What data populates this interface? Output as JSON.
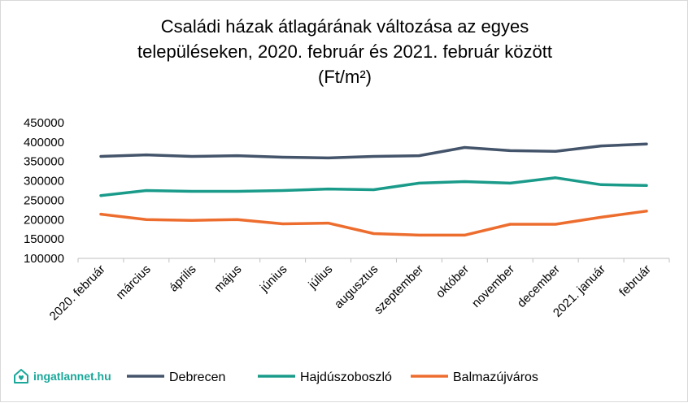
{
  "chart_data": {
    "type": "line",
    "title_lines": [
      "Családi házak átlagárának változása az egyes",
      "településeken, 2020. február és 2021. február között",
      "(Ft/m²)"
    ],
    "categories": [
      "2020. február",
      "március",
      "április",
      "május",
      "június",
      "július",
      "augusztus",
      "szeptember",
      "október",
      "november",
      "december",
      "2021. január",
      "február"
    ],
    "y_ticks": [
      "450000",
      "400000",
      "350000",
      "300000",
      "250000",
      "200000",
      "150000",
      "100000"
    ],
    "ylim": [
      100000,
      450000
    ],
    "grid": false,
    "legend_position": "bottom",
    "series": [
      {
        "name": "Debrecen",
        "color": "#44546a",
        "values": [
          363000,
          367000,
          363000,
          365000,
          361000,
          359000,
          363000,
          365000,
          386000,
          378000,
          376000,
          390000,
          395000
        ]
      },
      {
        "name": "Hajdúszoboszló",
        "color": "#1a9b8a",
        "values": [
          262000,
          275000,
          273000,
          273000,
          275000,
          279000,
          277000,
          294000,
          298000,
          294000,
          308000,
          290000,
          288000
        ]
      },
      {
        "name": "Balmazújváros",
        "color": "#ed6d2e",
        "values": [
          214000,
          200000,
          198000,
          200000,
          189000,
          191000,
          164000,
          160000,
          160000,
          188000,
          188000,
          206000,
          222000
        ]
      }
    ]
  },
  "logo": {
    "text": "ingatlannet.hu",
    "icon": "house-heart-icon",
    "color": "#1aa89a"
  }
}
